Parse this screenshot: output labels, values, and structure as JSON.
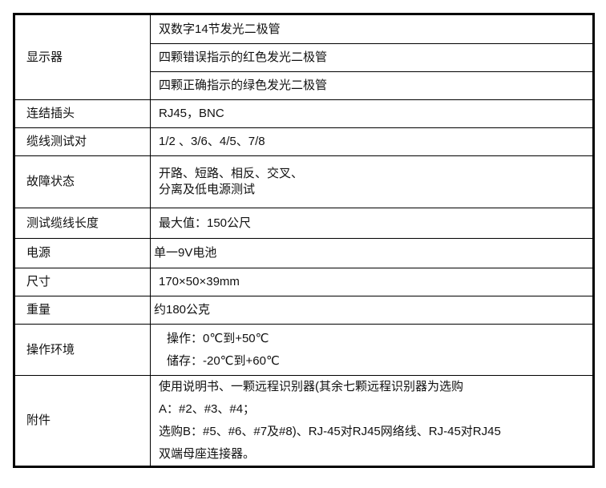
{
  "rows": [
    {
      "label": "显示器",
      "values": [
        "双数字14节发光二极管",
        "四颗错误指示的红色发光二极管",
        "四颗正确指示的绿色发光二极管"
      ]
    },
    {
      "label": "连结插头",
      "values": [
        "RJ45，BNC"
      ]
    },
    {
      "label": "缆线测试对",
      "values": [
        "1/2 、3/6、4/5、7/8"
      ]
    },
    {
      "label": "故障状态",
      "values": [
        "开路、短路、相反、交叉、",
        "分离及低电源测试"
      ]
    },
    {
      "label": "测试缆线长度",
      "values": [
        "最大值：150公尺"
      ]
    },
    {
      "label": "电源",
      "values": [
        "单一9V电池"
      ]
    },
    {
      "label": "尺寸",
      "values": [
        "170×50×39mm"
      ]
    },
    {
      "label": "重量",
      "values": [
        "约180公克"
      ]
    },
    {
      "label": "操作环境",
      "values": [
        "操作：0℃到+50℃",
        "储存：-20℃到+60℃"
      ]
    },
    {
      "label": "附件",
      "values": [
        "使用说明书、一颗远程识别器(其余七颗远程识别器为选购",
        "A：#2、#3、#4；",
        "选购B：#5、#6、#7及#8)、RJ-45对RJ45网络线、RJ-45对RJ45",
        "双端母座连接器。"
      ]
    }
  ]
}
